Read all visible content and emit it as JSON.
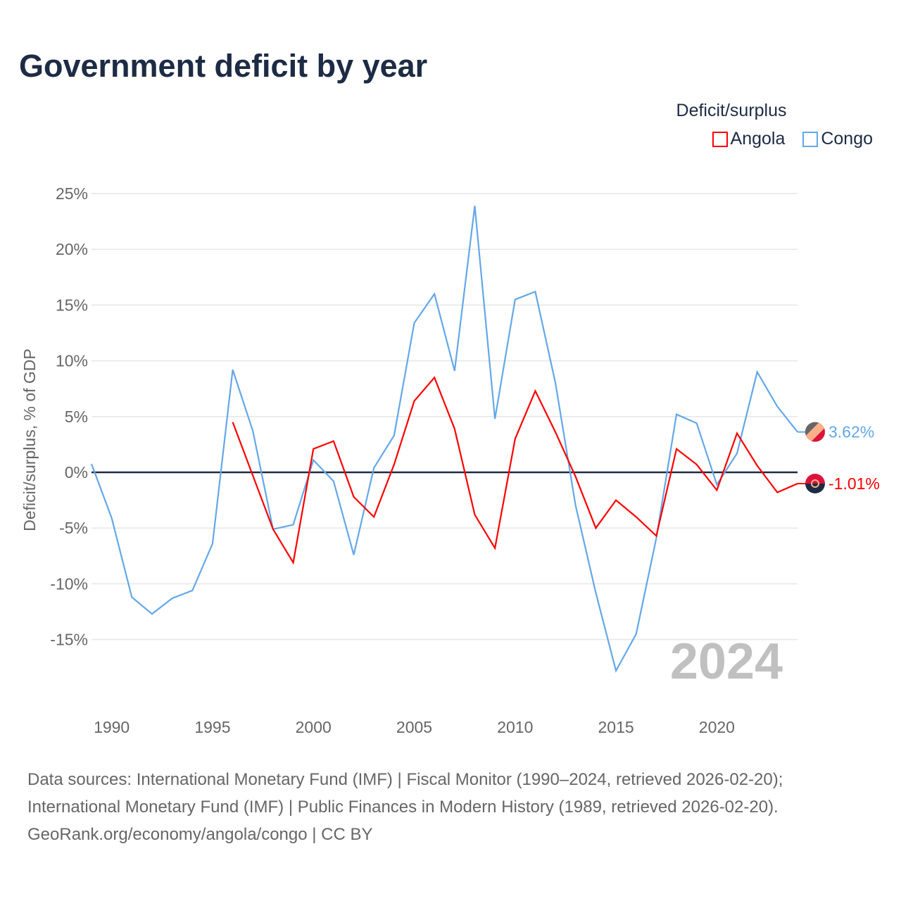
{
  "chart_data": {
    "type": "line",
    "title": "Government deficit by year",
    "ylabel": "Deficit/surplus, % of GDP",
    "xlabel": "",
    "legend_title": "Deficit/surplus",
    "legend_position": "top-right",
    "ylim": [
      -20,
      25
    ],
    "xlim": [
      1989,
      2024
    ],
    "yticks": [
      25,
      20,
      15,
      10,
      5,
      0,
      -5,
      -10,
      -15
    ],
    "ytick_labels": [
      "25%",
      "20%",
      "15%",
      "10%",
      "5%",
      "0%",
      "-5%",
      "-10%",
      "-15%"
    ],
    "xticks": [
      1990,
      1995,
      2000,
      2005,
      2010,
      2015,
      2020
    ],
    "xtick_labels": [
      "1990",
      "1995",
      "2000",
      "2005",
      "2010",
      "2015",
      "2020"
    ],
    "grid": true,
    "year_watermark": "2024",
    "series": [
      {
        "name": "Angola",
        "color": "#ff0000",
        "end_label": "-1.01%",
        "x": [
          1996,
          1997,
          1998,
          1999,
          2000,
          2001,
          2002,
          2003,
          2004,
          2005,
          2006,
          2007,
          2008,
          2009,
          2010,
          2011,
          2012,
          2013,
          2014,
          2015,
          2016,
          2017,
          2018,
          2019,
          2020,
          2021,
          2022,
          2023,
          2024
        ],
        "values": [
          4.5,
          -0.3,
          -5.1,
          -8.1,
          2.1,
          2.8,
          -2.2,
          -4.0,
          0.7,
          6.4,
          8.5,
          3.9,
          -3.8,
          -6.8,
          3.0,
          7.3,
          3.6,
          -0.4,
          -5.0,
          -2.5,
          -4.0,
          -5.7,
          2.1,
          0.7,
          -1.6,
          3.5,
          0.6,
          -1.8,
          -1.01
        ]
      },
      {
        "name": "Congo",
        "color": "#64a7e8",
        "end_label": "3.62%",
        "x": [
          1989,
          1990,
          1991,
          1992,
          1993,
          1994,
          1995,
          1996,
          1997,
          1998,
          1999,
          2000,
          2001,
          2002,
          2003,
          2004,
          2005,
          2006,
          2007,
          2008,
          2009,
          2010,
          2011,
          2012,
          2013,
          2014,
          2015,
          2016,
          2017,
          2018,
          2019,
          2020,
          2021,
          2022,
          2023,
          2024
        ],
        "values": [
          0.76,
          -4.1,
          -11.2,
          -12.7,
          -11.3,
          -10.6,
          -6.4,
          9.2,
          3.7,
          -5.1,
          -4.7,
          1.1,
          -0.8,
          -7.4,
          0.4,
          3.3,
          13.4,
          16.0,
          9.1,
          23.9,
          4.8,
          15.5,
          16.2,
          8.0,
          -3.0,
          -10.8,
          -17.8,
          -14.5,
          -5.9,
          5.2,
          4.4,
          -1.1,
          1.7,
          9.0,
          5.9,
          3.62
        ]
      }
    ]
  },
  "footer": {
    "line1": "Data sources: International Monetary Fund (IMF) | Fiscal Monitor (1990–2024, retrieved 2026-02-20);",
    "line2": "International Monetary Fund (IMF) | Public Finances in Modern History (1989, retrieved 2026-02-20).",
    "line3": "GeoRank.org/economy/angola/congo | CC BY"
  }
}
